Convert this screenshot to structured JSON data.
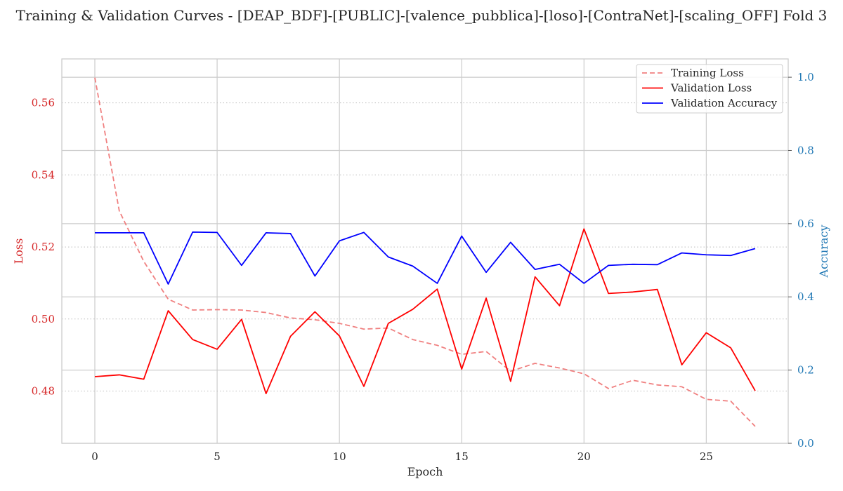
{
  "chart_data": {
    "type": "line",
    "title": "Training & Validation Curves - [DEAP_BDF]-[PUBLIC]-[valence_pubblica]-[loso]-[ContraNet]-[scaling_OFF] Fold 3",
    "xlabel": "Epoch",
    "ylabel_left": "Loss",
    "ylabel_right": "Accuracy",
    "xlim": [
      -1.35,
      28.35
    ],
    "ylim_left": [
      0.4655,
      0.5722
    ],
    "ylim_right": [
      0.0,
      1.05
    ],
    "xticks": [
      0,
      5,
      10,
      15,
      20,
      25
    ],
    "xtick_labels": [
      "0",
      "5",
      "10",
      "15",
      "20",
      "25"
    ],
    "yticks_left": [
      0.48,
      0.5,
      0.52,
      0.54,
      0.56
    ],
    "ytick_labels_left": [
      "0.48",
      "0.50",
      "0.52",
      "0.54",
      "0.56"
    ],
    "yticks_right": [
      0.0,
      0.2,
      0.4,
      0.6,
      0.8,
      1.0
    ],
    "ytick_labels_right": [
      "0.0",
      "0.2",
      "0.4",
      "0.6",
      "0.8",
      "1.0"
    ],
    "grid": true,
    "legend_position": "top-right",
    "x": [
      0,
      1,
      2,
      3,
      4,
      5,
      6,
      7,
      8,
      9,
      10,
      11,
      12,
      13,
      14,
      15,
      16,
      17,
      18,
      19,
      20,
      21,
      22,
      23,
      24,
      25,
      26,
      27
    ],
    "series": [
      {
        "name": "Training Loss",
        "axis": "left",
        "color": "#f08080",
        "dash": true,
        "values": [
          0.567,
          0.53,
          0.516,
          0.5055,
          0.5025,
          0.5026,
          0.5025,
          0.5018,
          0.5003,
          0.4998,
          0.4988,
          0.4972,
          0.4975,
          0.4943,
          0.4927,
          0.4902,
          0.491,
          0.4855,
          0.4877,
          0.4864,
          0.4848,
          0.4807,
          0.483,
          0.4817,
          0.4812,
          0.4777,
          0.4772,
          0.4702
        ]
      },
      {
        "name": "Validation Loss",
        "axis": "left",
        "color": "#ff0000",
        "dash": false,
        "values": [
          0.484,
          0.4845,
          0.4833,
          0.5023,
          0.4943,
          0.4916,
          0.4999,
          0.4793,
          0.4952,
          0.502,
          0.4953,
          0.4813,
          0.4988,
          0.5027,
          0.5083,
          0.4861,
          0.5058,
          0.4827,
          0.5117,
          0.5037,
          0.525,
          0.5071,
          0.5075,
          0.5082,
          0.4873,
          0.4962,
          0.492,
          0.4801
        ]
      },
      {
        "name": "Validation Accuracy",
        "axis": "right",
        "color": "#0000ff",
        "dash": false,
        "values": [
          0.575,
          0.575,
          0.575,
          0.435,
          0.577,
          0.576,
          0.486,
          0.575,
          0.573,
          0.457,
          0.553,
          0.576,
          0.509,
          0.484,
          0.437,
          0.566,
          0.467,
          0.549,
          0.475,
          0.489,
          0.437,
          0.486,
          0.489,
          0.488,
          0.52,
          0.515,
          0.513,
          0.532
        ]
      }
    ]
  },
  "colors": {
    "left_axis": "#d62728",
    "right_axis": "#1f77b4",
    "grid": "#cccccc",
    "spine": "#cccccc"
  }
}
